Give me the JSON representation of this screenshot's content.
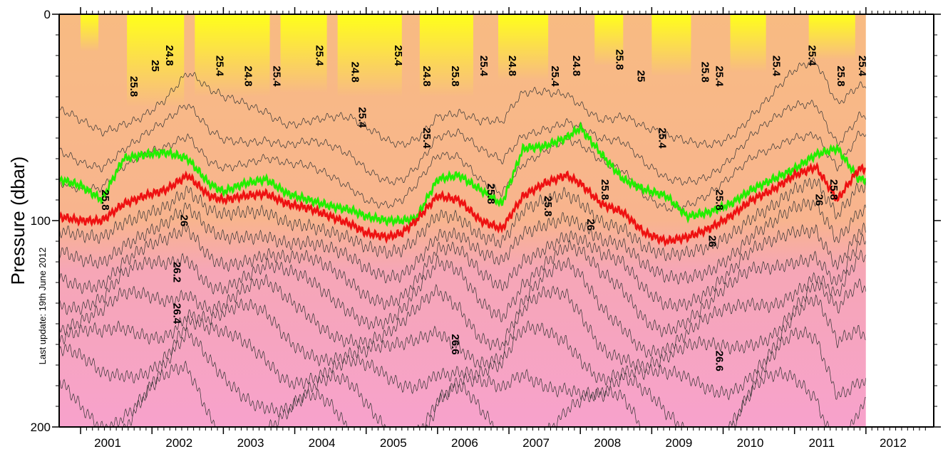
{
  "chart_data": {
    "type": "heatmap",
    "title": "",
    "xlabel": "",
    "ylabel": "Pressure (dbar)",
    "note": "Last update: 19th June 2012",
    "x_tick_labels": [
      "2001",
      "2002",
      "2003",
      "2004",
      "2005",
      "2006",
      "2007",
      "2008",
      "2009",
      "2010",
      "2011",
      "2012"
    ],
    "y_tick_labels": [
      "0",
      "100",
      "200"
    ],
    "xlim": [
      2000.7,
      2012.95
    ],
    "ylim": [
      200,
      0
    ],
    "data_end": 2012.0,
    "colors": {
      "top_fill": "#ffff1a",
      "mid_fill": "#f8bb82",
      "deep_fill": "#f7a5c6",
      "highlight_25_8": "#22ee00",
      "highlight_26": "#ee1111",
      "thin_contour": "#333333"
    },
    "highlighted_contours": [
      {
        "level": "25.8",
        "color": "green",
        "x": [
          2000.7,
          2001.0,
          2001.3,
          2001.6,
          2001.9,
          2002.2,
          2002.5,
          2002.8,
          2003.0,
          2003.3,
          2003.6,
          2003.9,
          2004.2,
          2004.5,
          2004.8,
          2005.0,
          2005.3,
          2005.5,
          2005.7,
          2006.0,
          2006.3,
          2006.6,
          2006.9,
          2007.2,
          2007.5,
          2007.8,
          2008.0,
          2008.3,
          2008.6,
          2008.9,
          2009.2,
          2009.5,
          2009.8,
          2010.1,
          2010.4,
          2010.7,
          2011.0,
          2011.3,
          2011.6,
          2011.9
        ],
        "y": [
          80,
          83,
          90,
          70,
          68,
          67,
          70,
          82,
          86,
          82,
          80,
          87,
          90,
          93,
          95,
          98,
          100,
          100,
          99,
          80,
          78,
          85,
          92,
          65,
          64,
          60,
          55,
          68,
          80,
          85,
          88,
          98,
          96,
          92,
          85,
          80,
          75,
          68,
          65,
          80
        ]
      },
      {
        "level": "26",
        "color": "red",
        "x": [
          2000.7,
          2001.0,
          2001.3,
          2001.6,
          2001.9,
          2002.2,
          2002.5,
          2002.8,
          2003.0,
          2003.3,
          2003.6,
          2003.9,
          2004.2,
          2004.5,
          2004.8,
          2005.0,
          2005.3,
          2005.5,
          2005.7,
          2006.0,
          2006.3,
          2006.6,
          2006.9,
          2007.2,
          2007.5,
          2007.8,
          2008.0,
          2008.3,
          2008.6,
          2008.9,
          2009.2,
          2009.5,
          2009.8,
          2010.1,
          2010.4,
          2010.7,
          2011.0,
          2011.3,
          2011.6,
          2011.9
        ],
        "y": [
          98,
          100,
          100,
          92,
          88,
          85,
          78,
          88,
          90,
          88,
          87,
          92,
          94,
          98,
          102,
          106,
          108,
          106,
          100,
          88,
          90,
          100,
          104,
          88,
          82,
          78,
          82,
          92,
          96,
          106,
          110,
          108,
          104,
          98,
          90,
          85,
          78,
          74,
          90,
          75
        ]
      }
    ],
    "contour_labels": [
      {
        "text": "24.8",
        "x": 2002.2,
        "y": 20
      },
      {
        "text": "25",
        "x": 2002.0,
        "y": 25
      },
      {
        "text": "25.4",
        "x": 2002.9,
        "y": 25
      },
      {
        "text": "24.8",
        "x": 2003.3,
        "y": 30
      },
      {
        "text": "25.4",
        "x": 2003.7,
        "y": 30
      },
      {
        "text": "25.4",
        "x": 2004.3,
        "y": 20
      },
      {
        "text": "24.8",
        "x": 2004.8,
        "y": 28
      },
      {
        "text": "25.4",
        "x": 2004.9,
        "y": 50
      },
      {
        "text": "25.4",
        "x": 2005.4,
        "y": 20
      },
      {
        "text": "24.8",
        "x": 2005.8,
        "y": 30
      },
      {
        "text": "25.4",
        "x": 2005.8,
        "y": 60
      },
      {
        "text": "25.8",
        "x": 2006.2,
        "y": 30
      },
      {
        "text": "25.4",
        "x": 2006.6,
        "y": 25
      },
      {
        "text": "24.8",
        "x": 2007.0,
        "y": 25
      },
      {
        "text": "25.4",
        "x": 2007.6,
        "y": 30
      },
      {
        "text": "24.8",
        "x": 2007.9,
        "y": 25
      },
      {
        "text": "25.8",
        "x": 2008.5,
        "y": 22
      },
      {
        "text": "25",
        "x": 2008.8,
        "y": 30
      },
      {
        "text": "25.4",
        "x": 2009.1,
        "y": 60
      },
      {
        "text": "25.8",
        "x": 2009.7,
        "y": 28
      },
      {
        "text": "25.4",
        "x": 2009.9,
        "y": 30
      },
      {
        "text": "25.4",
        "x": 2010.7,
        "y": 25
      },
      {
        "text": "25.4",
        "x": 2011.2,
        "y": 20
      },
      {
        "text": "25.8",
        "x": 2011.6,
        "y": 30
      },
      {
        "text": "25.4",
        "x": 2011.9,
        "y": 25
      },
      {
        "text": "24.8",
        "x": 2012.1,
        "y": 30
      },
      {
        "text": "25.8",
        "x": 2001.7,
        "y": 35
      },
      {
        "text": "25.8",
        "x": 2001.3,
        "y": 90
      },
      {
        "text": "25.8",
        "x": 2006.7,
        "y": 87
      },
      {
        "text": "25.8",
        "x": 2007.5,
        "y": 93
      },
      {
        "text": "25.8",
        "x": 2008.3,
        "y": 85
      },
      {
        "text": "25.8",
        "x": 2009.9,
        "y": 90
      },
      {
        "text": "25.8",
        "x": 2011.5,
        "y": 85
      },
      {
        "text": "26",
        "x": 2002.4,
        "y": 100
      },
      {
        "text": "26",
        "x": 2008.1,
        "y": 102
      },
      {
        "text": "26",
        "x": 2009.8,
        "y": 110
      },
      {
        "text": "26",
        "x": 2011.3,
        "y": 90
      },
      {
        "text": "26.2",
        "x": 2002.3,
        "y": 125
      },
      {
        "text": "26.4",
        "x": 2002.3,
        "y": 145
      },
      {
        "text": "26.6",
        "x": 2006.2,
        "y": 160
      },
      {
        "text": "26.6",
        "x": 2009.9,
        "y": 168
      }
    ]
  }
}
